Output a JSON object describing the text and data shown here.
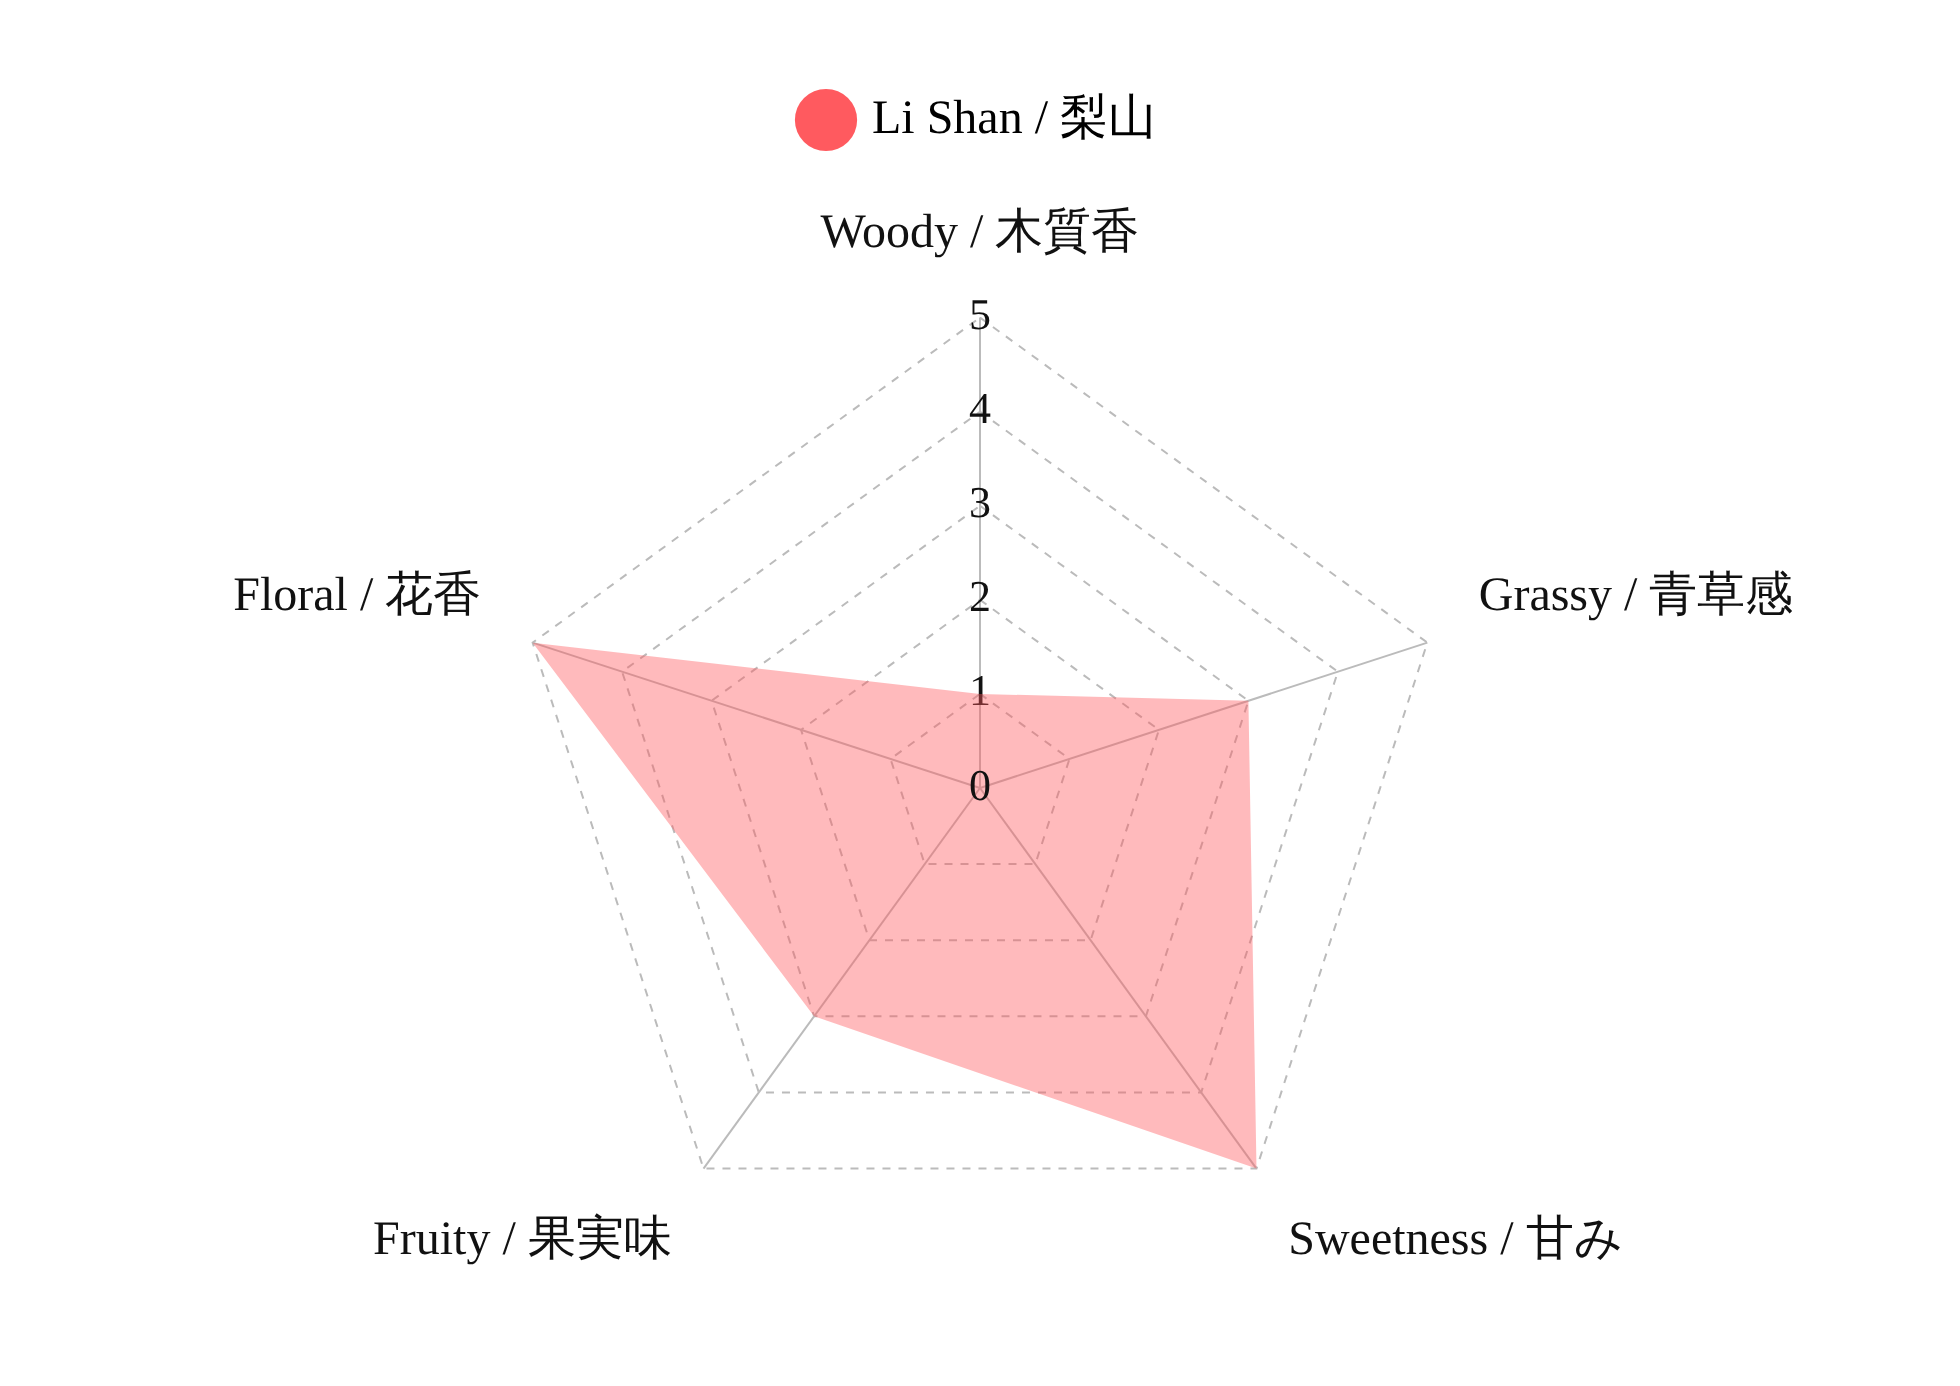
{
  "chart_data": {
    "type": "radar",
    "categories": [
      "Woody / 木質香",
      "Grassy / 青草感",
      "Sweetness / 甘み",
      "Fruity / 果実味",
      "Floral / 花香"
    ],
    "series": [
      {
        "name": "Li Shan / 梨山",
        "color": "#ff5a5f",
        "values": [
          1,
          3,
          5,
          3,
          5
        ]
      }
    ],
    "ylim": [
      0,
      5
    ],
    "yticks": [
      0,
      1,
      2,
      3,
      4,
      5
    ],
    "grid": true,
    "legend": "top",
    "marker": "none"
  }
}
